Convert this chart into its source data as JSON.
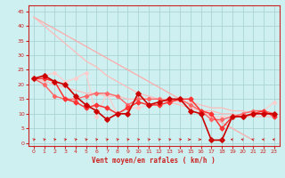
{
  "title": "",
  "xlabel": "Vent moyen/en rafales ( km/h )",
  "background_color": "#cff0f0",
  "grid_color": "#aad4d4",
  "xlim": [
    -0.5,
    23.5
  ],
  "ylim": [
    -1,
    47
  ],
  "yticks": [
    0,
    5,
    10,
    15,
    20,
    25,
    30,
    35,
    40,
    45
  ],
  "xticks": [
    0,
    1,
    2,
    3,
    4,
    5,
    6,
    7,
    8,
    9,
    10,
    11,
    12,
    13,
    14,
    15,
    16,
    17,
    18,
    19,
    20,
    21,
    22,
    23
  ],
  "series": [
    {
      "x": [
        0,
        1,
        2,
        3,
        4,
        5,
        6,
        7,
        8,
        9,
        10,
        11,
        12,
        13,
        14,
        15,
        16,
        17,
        18,
        19,
        20,
        21
      ],
      "y": [
        43,
        41,
        39,
        37,
        35,
        33,
        31,
        29,
        27,
        25,
        23,
        21,
        19,
        17,
        15,
        13,
        11,
        9,
        7,
        5,
        3,
        1
      ],
      "color": "#ffaaaa",
      "lw": 0.9,
      "marker": null
    },
    {
      "x": [
        0,
        1,
        2,
        3,
        4,
        5,
        6,
        7,
        8,
        9,
        10,
        11,
        12,
        13,
        14,
        15,
        16,
        17,
        18,
        19,
        20,
        21,
        22,
        23
      ],
      "y": [
        43,
        40,
        37,
        34,
        31,
        28,
        26,
        23,
        21,
        19,
        17,
        16,
        15,
        14,
        13,
        12,
        11,
        11,
        10,
        10,
        9,
        9,
        9,
        9
      ],
      "color": "#ffbbbb",
      "lw": 0.9,
      "marker": null
    },
    {
      "x": [
        0,
        1,
        2,
        3,
        4,
        5,
        6,
        7,
        8,
        9,
        10,
        11,
        12,
        13,
        14,
        15,
        16,
        17,
        18,
        19,
        20,
        21,
        22,
        23
      ],
      "y": [
        22,
        21,
        20,
        19,
        18,
        17,
        17,
        16,
        16,
        15,
        15,
        15,
        15,
        15,
        14,
        14,
        13,
        12,
        12,
        11,
        11,
        10,
        10,
        10
      ],
      "color": "#ffbbbb",
      "lw": 0.9,
      "marker": null
    },
    {
      "x": [
        0,
        1,
        2,
        3,
        4,
        5,
        6,
        7,
        8,
        9,
        10,
        11,
        12,
        13,
        14,
        15,
        16,
        17,
        18,
        19,
        20,
        21,
        22,
        23
      ],
      "y": [
        22,
        23,
        24,
        21,
        22,
        24,
        9,
        17,
        10,
        12,
        12,
        13,
        13,
        14,
        15,
        13,
        11,
        9,
        9,
        9,
        9,
        10,
        11,
        14
      ],
      "color": "#ffcccc",
      "lw": 0.9,
      "marker": "D",
      "ms": 2.0
    },
    {
      "x": [
        0,
        1,
        2,
        3,
        4,
        5,
        6,
        7,
        8,
        9,
        10,
        11,
        12,
        13,
        14,
        15,
        16,
        17,
        18,
        19,
        20,
        21,
        22,
        23
      ],
      "y": [
        22,
        20,
        16,
        15,
        15,
        16,
        17,
        17,
        16,
        13,
        15,
        15,
        15,
        14,
        15,
        13,
        11,
        8,
        8,
        9,
        10,
        11,
        11,
        10
      ],
      "color": "#ff6666",
      "lw": 1.0,
      "marker": "D",
      "ms": 2.2
    },
    {
      "x": [
        0,
        1,
        2,
        3,
        4,
        5,
        6,
        7,
        8,
        9,
        10,
        11,
        12,
        13,
        14,
        15,
        16,
        17,
        18,
        19,
        20,
        21,
        22,
        23
      ],
      "y": [
        22,
        22,
        21,
        15,
        14,
        12,
        13,
        12,
        10,
        12,
        14,
        13,
        13,
        14,
        15,
        15,
        11,
        10,
        5,
        9,
        9,
        10,
        11,
        9
      ],
      "color": "#ff3333",
      "lw": 1.1,
      "marker": "D",
      "ms": 2.5
    },
    {
      "x": [
        0,
        1,
        2,
        3,
        4,
        5,
        6,
        7,
        8,
        9,
        10,
        11,
        12,
        13,
        14,
        15,
        16,
        17,
        18,
        19,
        20,
        21,
        22,
        23
      ],
      "y": [
        22,
        23,
        21,
        20,
        16,
        13,
        11,
        8,
        10,
        10,
        17,
        13,
        14,
        15,
        15,
        11,
        10,
        1,
        1,
        9,
        9,
        10,
        10,
        10
      ],
      "color": "#cc0000",
      "lw": 1.2,
      "marker": "D",
      "ms": 2.8
    }
  ],
  "wind_arrows": [
    {
      "x": 0,
      "type": "ne"
    },
    {
      "x": 1,
      "type": "ne"
    },
    {
      "x": 2,
      "type": "ne"
    },
    {
      "x": 3,
      "type": "ne"
    },
    {
      "x": 4,
      "type": "ne"
    },
    {
      "x": 5,
      "type": "ne"
    },
    {
      "x": 6,
      "type": "ne"
    },
    {
      "x": 7,
      "type": "ne"
    },
    {
      "x": 8,
      "type": "ne"
    },
    {
      "x": 9,
      "type": "ne"
    },
    {
      "x": 10,
      "type": "ne"
    },
    {
      "x": 11,
      "type": "ne"
    },
    {
      "x": 12,
      "type": "ne"
    },
    {
      "x": 13,
      "type": "ne"
    },
    {
      "x": 14,
      "type": "ne"
    },
    {
      "x": 15,
      "type": "e"
    },
    {
      "x": 16,
      "type": "e"
    },
    {
      "x": 17,
      "type": "nw"
    },
    {
      "x": 18,
      "type": "nw"
    },
    {
      "x": 19,
      "type": "nw"
    },
    {
      "x": 20,
      "type": "nw"
    },
    {
      "x": 21,
      "type": "nw"
    },
    {
      "x": 22,
      "type": "nw"
    },
    {
      "x": 23,
      "type": "nw"
    }
  ]
}
